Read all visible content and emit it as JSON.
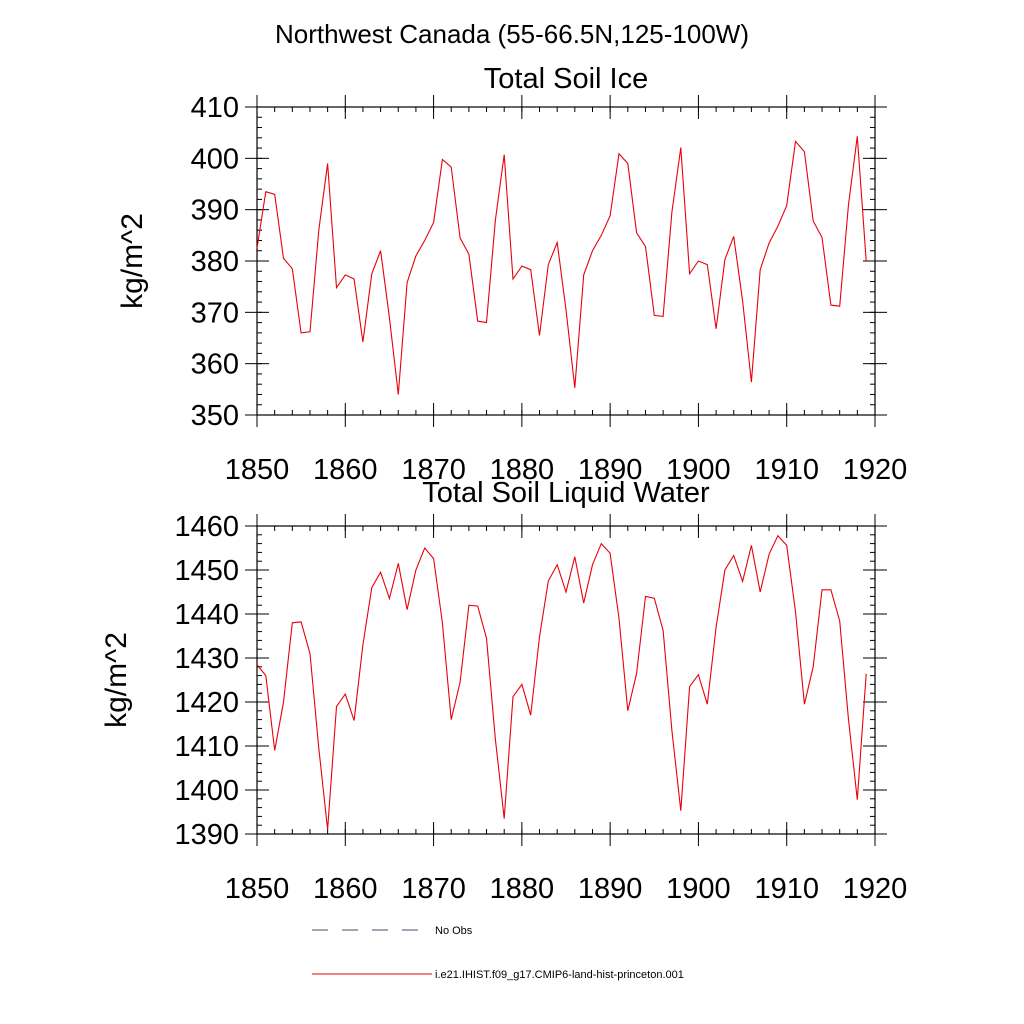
{
  "figure": {
    "title": "Northwest Canada (55-66.5N,125-100W)"
  },
  "colors": {
    "series": "#e8000b",
    "obs": "#4a4a6a",
    "axes": "#000000"
  },
  "legend": {
    "position": "bottom",
    "entries": [
      {
        "label": "No Obs",
        "style": "dashed",
        "color": "#4a4a6a"
      },
      {
        "label": "i.e21.IHIST.f09_g17.CMIP6-land-hist-princeton.001",
        "style": "solid",
        "color": "#e8000b"
      }
    ]
  },
  "chart_data": [
    {
      "type": "line",
      "title": "Total Soil Ice",
      "xlabel": "",
      "ylabel": "kg/m^2",
      "xlim": [
        1850,
        1920
      ],
      "ylim": [
        350,
        410
      ],
      "xticks": [
        1850,
        1860,
        1870,
        1880,
        1890,
        1900,
        1910,
        1920
      ],
      "yticks": [
        350,
        360,
        370,
        380,
        390,
        400,
        410
      ],
      "xtick_labels": [
        "1850",
        "1860",
        "1870",
        "1880",
        "1890",
        "1900",
        "1910",
        "1920"
      ],
      "ytick_labels": [
        "350",
        "360",
        "370",
        "380",
        "390",
        "400",
        "410"
      ],
      "grid": false,
      "series": [
        {
          "name": "i.e21.IHIST.f09_g17.CMIP6-land-hist-princeton.001",
          "x": [
            1850,
            1851,
            1852,
            1853,
            1854,
            1855,
            1856,
            1857,
            1858,
            1859,
            1860,
            1861,
            1862,
            1863,
            1864,
            1865,
            1866,
            1867,
            1868,
            1869,
            1870,
            1871,
            1872,
            1873,
            1874,
            1875,
            1876,
            1877,
            1878,
            1879,
            1880,
            1881,
            1882,
            1883,
            1884,
            1885,
            1886,
            1887,
            1888,
            1889,
            1890,
            1891,
            1892,
            1893,
            1894,
            1895,
            1896,
            1897,
            1898,
            1899,
            1900,
            1901,
            1902,
            1903,
            1904,
            1905,
            1906,
            1907,
            1908,
            1909,
            1910,
            1911,
            1912,
            1913,
            1914,
            1915,
            1916,
            1917,
            1918,
            1919
          ],
          "values": [
            382.5,
            393.5,
            393.0,
            380.5,
            378.5,
            366.0,
            366.2,
            386.0,
            399.0,
            374.8,
            377.3,
            376.5,
            364.2,
            377.5,
            382.0,
            369.0,
            354.0,
            375.8,
            381.0,
            384.0,
            387.5,
            399.8,
            398.3,
            384.5,
            381.3,
            368.3,
            368.0,
            388.0,
            400.7,
            376.5,
            379.0,
            378.3,
            365.5,
            379.3,
            383.6,
            370.5,
            355.3,
            377.3,
            382.0,
            385.0,
            388.8,
            400.9,
            399.0,
            385.5,
            382.8,
            369.4,
            369.2,
            389.5,
            402.1,
            377.5,
            380.0,
            379.3,
            366.8,
            380.3,
            384.8,
            372.2,
            356.4,
            378.3,
            383.5,
            386.8,
            390.8,
            403.3,
            401.3,
            387.8,
            384.6,
            371.4,
            371.2,
            391.0,
            404.3,
            380.0
          ]
        }
      ]
    },
    {
      "type": "line",
      "title": "Total Soil Liquid Water",
      "xlabel": "",
      "ylabel": "kg/m^2",
      "xlim": [
        1850,
        1920
      ],
      "ylim": [
        1390,
        1460
      ],
      "xticks": [
        1850,
        1860,
        1870,
        1880,
        1890,
        1900,
        1910,
        1920
      ],
      "yticks": [
        1390,
        1400,
        1410,
        1420,
        1430,
        1440,
        1450,
        1460
      ],
      "xtick_labels": [
        "1850",
        "1860",
        "1870",
        "1880",
        "1890",
        "1900",
        "1910",
        "1920"
      ],
      "ytick_labels": [
        "1390",
        "1400",
        "1410",
        "1420",
        "1430",
        "1440",
        "1450",
        "1460"
      ],
      "grid": false,
      "series": [
        {
          "name": "i.e21.IHIST.f09_g17.CMIP6-land-hist-princeton.001",
          "x": [
            1850,
            1851,
            1852,
            1853,
            1854,
            1855,
            1856,
            1857,
            1858,
            1859,
            1860,
            1861,
            1862,
            1863,
            1864,
            1865,
            1866,
            1867,
            1868,
            1869,
            1870,
            1871,
            1872,
            1873,
            1874,
            1875,
            1876,
            1877,
            1878,
            1879,
            1880,
            1881,
            1882,
            1883,
            1884,
            1885,
            1886,
            1887,
            1888,
            1889,
            1890,
            1891,
            1892,
            1893,
            1894,
            1895,
            1896,
            1897,
            1898,
            1899,
            1900,
            1901,
            1902,
            1903,
            1904,
            1905,
            1906,
            1907,
            1908,
            1909,
            1910,
            1911,
            1912,
            1913,
            1914,
            1915,
            1916,
            1917,
            1918,
            1919
          ],
          "values": [
            1428.5,
            1426.0,
            1409.0,
            1420.0,
            1438.0,
            1438.2,
            1431.0,
            1409.5,
            1391.0,
            1419.0,
            1421.8,
            1415.8,
            1433.0,
            1446.0,
            1449.5,
            1443.5,
            1451.5,
            1441.0,
            1450.0,
            1455.0,
            1452.6,
            1438.0,
            1416.0,
            1424.5,
            1442.0,
            1441.8,
            1434.5,
            1411.5,
            1393.5,
            1421.2,
            1424.0,
            1417.0,
            1434.8,
            1447.5,
            1451.2,
            1445.0,
            1453.0,
            1442.5,
            1451.2,
            1456.0,
            1453.8,
            1439.0,
            1418.0,
            1426.5,
            1444.0,
            1443.6,
            1436.3,
            1413.5,
            1395.3,
            1423.5,
            1426.2,
            1419.5,
            1437.0,
            1450.0,
            1453.3,
            1447.4,
            1455.6,
            1445.0,
            1453.6,
            1457.8,
            1455.6,
            1440.5,
            1419.5,
            1428.0,
            1445.5,
            1445.5,
            1438.4,
            1416.0,
            1397.8,
            1426.4
          ]
        }
      ]
    }
  ]
}
